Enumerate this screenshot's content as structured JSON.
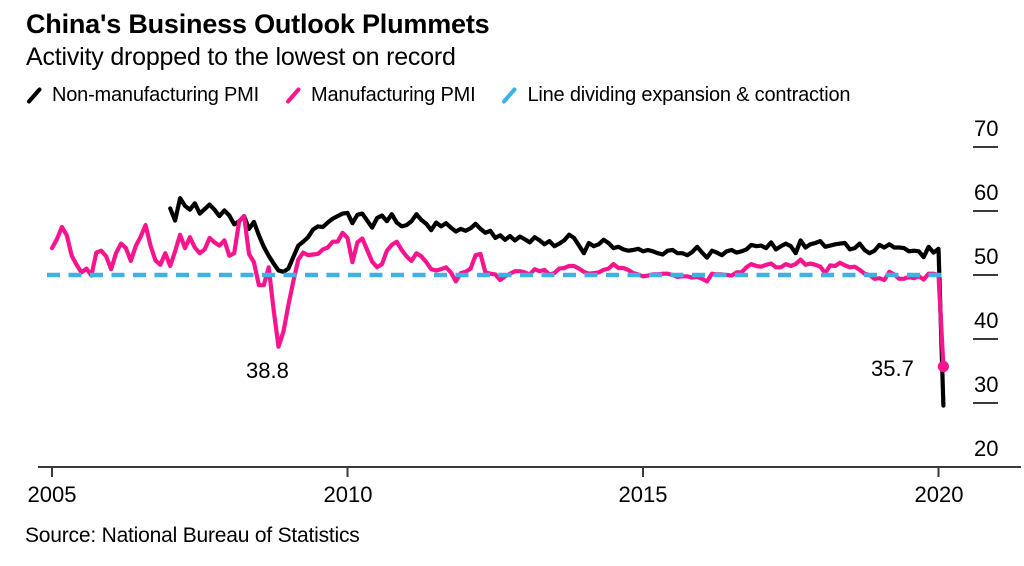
{
  "chart_data": {
    "type": "line",
    "title": "China's Business Outlook Plummets",
    "subtitle": "Activity dropped to the lowest on record",
    "source": "Source: National Bureau of Statistics",
    "x_axis": {
      "unit": "year",
      "ticks": [
        "2005",
        "2010",
        "2015",
        "2020"
      ],
      "start": 2005,
      "end": 2021.4
    },
    "y_axis": {
      "position": "right",
      "ticks": [
        "70",
        "60",
        "50",
        "40",
        "30",
        "20"
      ],
      "min": 20,
      "max": 72,
      "grid": "off"
    },
    "reference_line": {
      "label": "Line dividing expansion & contraction",
      "value": 50,
      "color": "#3fb1e3",
      "style": "dashed"
    },
    "series": [
      {
        "name": "Non-manufacturing PMI",
        "color": "#000000",
        "frequency": "monthly",
        "start_year": 2007,
        "start_month": 1,
        "end_dot": false,
        "values": [
          60.4,
          58.5,
          62.0,
          60.8,
          60.2,
          61.2,
          59.6,
          60.3,
          61.0,
          60.2,
          59.2,
          60.1,
          59.3,
          57.9,
          58.4,
          59.2,
          57.2,
          58.3,
          56.2,
          54.4,
          53.0,
          51.8,
          50.7,
          50.5,
          51.0,
          52.8,
          54.6,
          55.2,
          55.9,
          57.1,
          57.6,
          57.5,
          58.2,
          58.8,
          59.2,
          59.6,
          59.7,
          58.1,
          59.4,
          59.6,
          58.5,
          57.4,
          58.9,
          59.3,
          58.4,
          59.5,
          58.2,
          57.6,
          57.8,
          58.4,
          59.5,
          58.6,
          58.0,
          57.0,
          58.2,
          57.6,
          58.1,
          57.4,
          56.8,
          57.2,
          56.9,
          57.3,
          58.0,
          57.2,
          56.6,
          56.9,
          55.8,
          56.2,
          55.5,
          56.1,
          55.4,
          56.0,
          55.6,
          55.1,
          55.9,
          55.4,
          54.8,
          55.3,
          54.5,
          54.9,
          55.4,
          56.3,
          55.8,
          54.6,
          53.4,
          55.0,
          54.5,
          54.8,
          55.5,
          55.0,
          54.2,
          54.4,
          54.0,
          53.8,
          53.9,
          54.1,
          53.7,
          53.9,
          53.7,
          53.4,
          53.2,
          53.8,
          53.9,
          53.4,
          53.4,
          53.1,
          53.6,
          54.4,
          53.5,
          52.7,
          53.8,
          53.5,
          53.1,
          53.7,
          53.9,
          53.5,
          53.7,
          54.0,
          54.7,
          54.5,
          54.6,
          54.2,
          55.1,
          54.0,
          54.5,
          54.9,
          54.5,
          53.4,
          55.4,
          54.3,
          54.8,
          55.0,
          55.3,
          54.4,
          54.6,
          54.8,
          54.9,
          55.0,
          54.0,
          54.2,
          54.9,
          53.9,
          53.4,
          53.8,
          54.7,
          54.3,
          54.8,
          54.3,
          54.3,
          54.2,
          53.7,
          53.8,
          53.7,
          52.8,
          54.4,
          53.5,
          54.1,
          29.6
        ]
      },
      {
        "name": "Manufacturing PMI",
        "color": "#f7148f",
        "frequency": "monthly",
        "start_year": 2005,
        "start_month": 1,
        "end_dot": true,
        "values": [
          54.2,
          55.6,
          57.5,
          56.2,
          53.0,
          51.6,
          50.4,
          51.0,
          49.9,
          53.5,
          53.8,
          52.9,
          50.9,
          53.4,
          54.9,
          54.2,
          52.2,
          54.5,
          56.0,
          57.8,
          54.6,
          52.3,
          51.6,
          53.4,
          51.4,
          53.7,
          56.3,
          54.2,
          55.9,
          54.3,
          53.4,
          54.0,
          55.8,
          55.1,
          54.6,
          55.4,
          53.0,
          53.4,
          58.4,
          59.2,
          53.3,
          52.0,
          48.4,
          48.4,
          51.2,
          44.6,
          38.8,
          41.2,
          45.3,
          49.0,
          52.4,
          53.5,
          53.1,
          53.2,
          53.3,
          54.0,
          54.3,
          55.2,
          55.2,
          56.6,
          55.8,
          52.0,
          55.1,
          55.7,
          53.9,
          52.1,
          51.2,
          51.7,
          53.8,
          54.7,
          55.2,
          53.9,
          52.9,
          52.2,
          53.4,
          52.9,
          52.0,
          50.9,
          50.7,
          50.9,
          51.2,
          50.4,
          49.0,
          50.3,
          50.5,
          51.0,
          53.1,
          53.3,
          50.4,
          50.2,
          50.1,
          49.2,
          49.8,
          50.2,
          50.6,
          50.6,
          50.4,
          50.1,
          50.9,
          50.6,
          50.8,
          50.1,
          50.3,
          51.0,
          51.1,
          51.4,
          51.4,
          51.0,
          50.5,
          50.2,
          50.3,
          50.4,
          50.8,
          51.0,
          51.7,
          51.1,
          51.1,
          50.8,
          50.3,
          50.1,
          49.8,
          49.9,
          50.1,
          50.1,
          50.2,
          50.2,
          50.0,
          49.7,
          49.8,
          49.8,
          49.6,
          49.7,
          49.4,
          49.0,
          50.2,
          50.1,
          50.1,
          50.0,
          49.9,
          50.4,
          50.4,
          51.2,
          51.7,
          51.4,
          51.3,
          51.6,
          51.8,
          51.2,
          51.2,
          51.7,
          51.4,
          51.7,
          52.4,
          51.6,
          51.8,
          51.6,
          51.3,
          50.3,
          51.5,
          51.4,
          51.9,
          51.5,
          51.2,
          51.3,
          50.8,
          50.2,
          50.0,
          49.4,
          49.5,
          49.2,
          50.5,
          50.1,
          49.4,
          49.4,
          49.7,
          49.5,
          49.8,
          49.3,
          50.2,
          50.2,
          50.0,
          35.7
        ]
      }
    ],
    "annotations": [
      {
        "text": "38.8",
        "series": "Manufacturing PMI",
        "date": "2008-11",
        "value": 38.8
      },
      {
        "text": "35.7",
        "series": "Manufacturing PMI",
        "date": "2020-02",
        "value": 35.7
      }
    ]
  }
}
